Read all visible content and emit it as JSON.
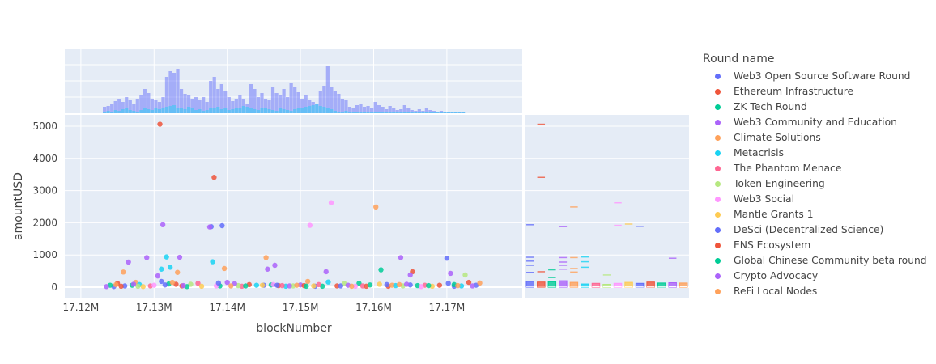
{
  "chart_data": {
    "type": "scatter",
    "xlabel": "blockNumber",
    "ylabel": "amountUSD",
    "x_ticks": [
      "17.12M",
      "17.13M",
      "17.14M",
      "17.15M",
      "17.16M",
      "17.17M"
    ],
    "x_tick_values": [
      17120000,
      17130000,
      17140000,
      17150000,
      17160000,
      17170000
    ],
    "y_ticks": [
      "0",
      "1000",
      "2000",
      "3000",
      "4000",
      "5000"
    ],
    "y_tick_values": [
      0,
      1000,
      2000,
      3000,
      4000,
      5000
    ],
    "xlim": [
      17117800,
      17180300
    ],
    "ylim": [
      -350,
      5350
    ],
    "marginal_x": "histogram",
    "marginal_y": "box",
    "grid": true,
    "legend_position": "right",
    "legend_title": "Round name",
    "series": [
      {
        "name": "Web3 Open Source Software Round",
        "color": "#636efa",
        "points": [
          [
            17124500,
            20
          ],
          [
            17126000,
            40
          ],
          [
            17131000,
            180
          ],
          [
            17137800,
            1880
          ],
          [
            17139300,
            1910
          ],
          [
            17145000,
            60
          ],
          [
            17152000,
            30
          ],
          [
            17165000,
            70
          ],
          [
            17170000,
            900
          ],
          [
            17171000,
            30
          ],
          [
            17174000,
            60
          ]
        ]
      },
      {
        "name": "Ethereum Infrastructure",
        "color": "#EF553B",
        "points": [
          [
            17130800,
            5060
          ],
          [
            17138200,
            3410
          ],
          [
            17125000,
            120
          ],
          [
            17133000,
            90
          ],
          [
            17147000,
            50
          ],
          [
            17155000,
            40
          ],
          [
            17162000,
            30
          ],
          [
            17165300,
            480
          ],
          [
            17173000,
            150
          ]
        ]
      },
      {
        "name": "ZK Tech Round",
        "color": "#00cc96",
        "points": [
          [
            17127000,
            60
          ],
          [
            17132000,
            100
          ],
          [
            17139000,
            40
          ],
          [
            17146000,
            70
          ],
          [
            17153000,
            30
          ],
          [
            17158000,
            120
          ],
          [
            17161000,
            540
          ],
          [
            17166000,
            50
          ],
          [
            17171000,
            80
          ]
        ]
      },
      {
        "name": "Web3 Community and Education",
        "color": "#ab63fa",
        "points": [
          [
            17126500,
            780
          ],
          [
            17129000,
            920
          ],
          [
            17130500,
            350
          ],
          [
            17131200,
            1940
          ],
          [
            17133500,
            930
          ],
          [
            17137600,
            1870
          ],
          [
            17145500,
            560
          ],
          [
            17146500,
            680
          ],
          [
            17153500,
            480
          ],
          [
            17163700,
            920
          ],
          [
            17165000,
            380
          ],
          [
            17170500,
            430
          ],
          [
            17140000,
            150
          ],
          [
            17150000,
            70
          ]
        ]
      },
      {
        "name": "Climate Solutions",
        "color": "#FFA15A",
        "points": [
          [
            17125800,
            470
          ],
          [
            17127500,
            150
          ],
          [
            17133200,
            460
          ],
          [
            17139600,
            580
          ],
          [
            17145300,
            920
          ],
          [
            17151000,
            180
          ],
          [
            17160300,
            2490
          ],
          [
            17162500,
            60
          ],
          [
            17174500,
            130
          ]
        ]
      },
      {
        "name": "Metacrisis",
        "color": "#19d3f3",
        "points": [
          [
            17128000,
            80
          ],
          [
            17131000,
            560
          ],
          [
            17131700,
            940
          ],
          [
            17132200,
            620
          ],
          [
            17138000,
            790
          ],
          [
            17144000,
            60
          ],
          [
            17148000,
            30
          ],
          [
            17153800,
            160
          ],
          [
            17163000,
            50
          ],
          [
            17172000,
            40
          ]
        ]
      },
      {
        "name": "The Phantom Menace",
        "color": "#FF6692",
        "points": [
          [
            17129500,
            40
          ],
          [
            17136000,
            120
          ],
          [
            17142000,
            30
          ],
          [
            17147500,
            50
          ],
          [
            17152500,
            80
          ],
          [
            17158500,
            40
          ],
          [
            17167000,
            60
          ]
        ]
      },
      {
        "name": "Token Engineering",
        "color": "#B6E880",
        "points": [
          [
            17127800,
            30
          ],
          [
            17135000,
            90
          ],
          [
            17141500,
            50
          ],
          [
            17149000,
            40
          ],
          [
            17156000,
            110
          ],
          [
            17164000,
            40
          ],
          [
            17172500,
            380
          ]
        ]
      },
      {
        "name": "Web3 Social",
        "color": "#FF97FF",
        "points": [
          [
            17151300,
            1920
          ],
          [
            17154200,
            2620
          ],
          [
            17130000,
            60
          ],
          [
            17138500,
            40
          ],
          [
            17146300,
            80
          ],
          [
            17157500,
            30
          ],
          [
            17166500,
            20
          ]
        ]
      },
      {
        "name": "Mantle Grants 1",
        "color": "#FECB52",
        "points": [
          [
            17128500,
            20
          ],
          [
            17136500,
            30
          ],
          [
            17144800,
            60
          ],
          [
            17151800,
            40
          ],
          [
            17160800,
            90
          ],
          [
            17168000,
            30
          ]
        ]
      },
      {
        "name": "DeSci (Decentralized Science)",
        "color": "#636efa",
        "points": [
          [
            17131500,
            70
          ],
          [
            17138800,
            130
          ],
          [
            17146800,
            60
          ],
          [
            17155500,
            40
          ],
          [
            17161800,
            80
          ],
          [
            17170200,
            120
          ]
        ]
      },
      {
        "name": "ENS Ecosystem",
        "color": "#EF553B",
        "points": [
          [
            17125500,
            30
          ],
          [
            17133800,
            40
          ],
          [
            17143000,
            80
          ],
          [
            17150500,
            50
          ],
          [
            17159000,
            30
          ],
          [
            17169000,
            60
          ]
        ]
      },
      {
        "name": "Global Chinese Community beta round",
        "color": "#00cc96",
        "points": [
          [
            17124000,
            60
          ],
          [
            17134500,
            20
          ],
          [
            17142500,
            40
          ],
          [
            17150800,
            30
          ],
          [
            17159500,
            70
          ],
          [
            17167500,
            50
          ]
        ]
      },
      {
        "name": "Crypto Advocacy",
        "color": "#ab63fa",
        "points": [
          [
            17123500,
            20
          ],
          [
            17127200,
            90
          ],
          [
            17134000,
            50
          ],
          [
            17141000,
            110
          ],
          [
            17148500,
            40
          ],
          [
            17156500,
            60
          ],
          [
            17164500,
            90
          ],
          [
            17173500,
            40
          ]
        ]
      },
      {
        "name": "ReFi Local Nodes",
        "color": "#FFA15A",
        "points": [
          [
            17124800,
            80
          ],
          [
            17132500,
            150
          ],
          [
            17140500,
            40
          ],
          [
            17149500,
            60
          ],
          [
            17157000,
            30
          ],
          [
            17163500,
            80
          ],
          [
            17171500,
            50
          ]
        ]
      }
    ],
    "box_stats": [
      {
        "name": "Web3 Open Source Software Round",
        "q1": 0,
        "median": 20,
        "q3": 180,
        "outliers": [
          1940,
          930,
          810,
          680,
          460
        ]
      },
      {
        "name": "Ethereum Infrastructure",
        "q1": 0,
        "median": 30,
        "q3": 160,
        "outliers": [
          5060,
          3410,
          480
        ]
      },
      {
        "name": "ZK Tech Round",
        "q1": 0,
        "median": 20,
        "q3": 170,
        "outliers": [
          540,
          300
        ]
      },
      {
        "name": "Web3 Community and Education",
        "q1": 0,
        "median": 20,
        "q3": 200,
        "outliers": [
          1880,
          920,
          780,
          680,
          560
        ]
      },
      {
        "name": "Climate Solutions",
        "q1": 0,
        "median": 25,
        "q3": 150,
        "outliers": [
          2490,
          920,
          580,
          470
        ]
      },
      {
        "name": "Metacrisis",
        "q1": 0,
        "median": 20,
        "q3": 100,
        "outliers": [
          940,
          790,
          620
        ]
      },
      {
        "name": "The Phantom Menace",
        "q1": 0,
        "median": 15,
        "q3": 120,
        "outliers": []
      },
      {
        "name": "Token Engineering",
        "q1": 0,
        "median": 15,
        "q3": 90,
        "outliers": [
          380
        ]
      },
      {
        "name": "Web3 Social",
        "q1": 0,
        "median": 15,
        "q3": 120,
        "outliers": [
          2620,
          1920
        ]
      },
      {
        "name": "Mantle Grants 1",
        "q1": 0,
        "median": 10,
        "q3": 150,
        "outliers": [
          1960
        ]
      },
      {
        "name": "DeSci (Decentralized Science)",
        "q1": 0,
        "median": 10,
        "q3": 120,
        "outliers": [
          1890
        ]
      },
      {
        "name": "ENS Ecosystem",
        "q1": 0,
        "median": 10,
        "q3": 160,
        "outliers": []
      },
      {
        "name": "Global Chinese Community beta round",
        "q1": 0,
        "median": 10,
        "q3": 130,
        "outliers": []
      },
      {
        "name": "Crypto Advocacy",
        "q1": 0,
        "median": 15,
        "q3": 140,
        "outliers": [
          900
        ]
      },
      {
        "name": "ReFi Local Nodes",
        "q1": 0,
        "median": 15,
        "q3": 130,
        "outliers": []
      }
    ],
    "histogram": {
      "bin_start": 17123000,
      "bin_width": 500,
      "total_counts": [
        8,
        9,
        12,
        15,
        18,
        14,
        20,
        16,
        12,
        18,
        22,
        30,
        25,
        18,
        16,
        14,
        20,
        45,
        52,
        50,
        55,
        30,
        24,
        22,
        18,
        20,
        16,
        20,
        14,
        40,
        45,
        30,
        36,
        28,
        20,
        15,
        18,
        22,
        17,
        12,
        36,
        30,
        20,
        25,
        18,
        16,
        32,
        25,
        22,
        30,
        20,
        38,
        32,
        26,
        18,
        22,
        16,
        14,
        12,
        28,
        34,
        58,
        32,
        28,
        24,
        18,
        16,
        8,
        6,
        10,
        12,
        8,
        9,
        6,
        14,
        10,
        8,
        5,
        9,
        6,
        4,
        5,
        10,
        6,
        4,
        3,
        5,
        3,
        7,
        4,
        3,
        2,
        3,
        2,
        2,
        1,
        1,
        1,
        1
      ],
      "overlay_counts": [
        2,
        3,
        2,
        4,
        3,
        5,
        6,
        4,
        3,
        2,
        4,
        6,
        5,
        4,
        7,
        5,
        6,
        8,
        9,
        10,
        7,
        6,
        5,
        8,
        6,
        4,
        5,
        3,
        4,
        6,
        7,
        8,
        5,
        6,
        4,
        5,
        6,
        7,
        9,
        8,
        6,
        5,
        4,
        7,
        6,
        5,
        4,
        3,
        6,
        5,
        4,
        3,
        5,
        6,
        7,
        8,
        9,
        10,
        11,
        9,
        8,
        6,
        5,
        3,
        2,
        2,
        3,
        2,
        2,
        1,
        2,
        1,
        1,
        2,
        1,
        1,
        1,
        1,
        2,
        1,
        1,
        1,
        1,
        1,
        1,
        1,
        1,
        1,
        1,
        1,
        1,
        1,
        1,
        1,
        1,
        1,
        1,
        1,
        1
      ]
    }
  }
}
